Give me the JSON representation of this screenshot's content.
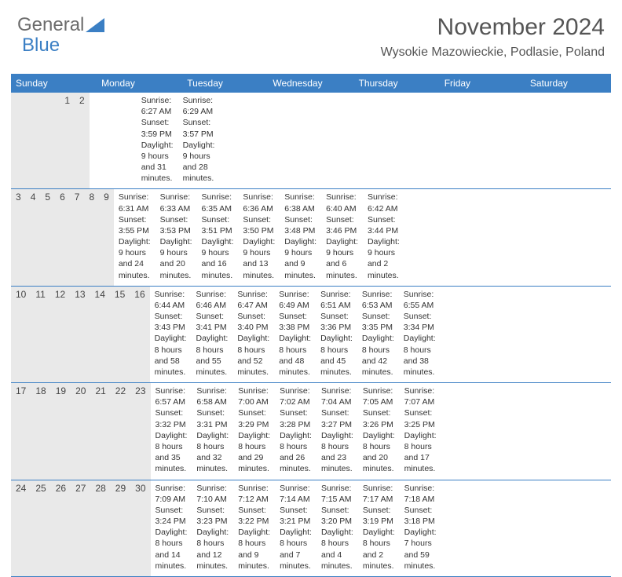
{
  "brand": {
    "part1": "General",
    "part2": "Blue"
  },
  "title": "November 2024",
  "location": "Wysokie Mazowieckie, Podlasie, Poland",
  "colors": {
    "header_bar": "#3b7fc4",
    "daynum_bg": "#e9e9e9",
    "text": "#333333",
    "title_text": "#555555"
  },
  "typography": {
    "title_fontsize": 30,
    "location_fontsize": 16,
    "dow_fontsize": 12,
    "daynum_fontsize": 12,
    "body_fontsize": 10.5
  },
  "dow": [
    "Sunday",
    "Monday",
    "Tuesday",
    "Wednesday",
    "Thursday",
    "Friday",
    "Saturday"
  ],
  "weeks": [
    {
      "nums": [
        "",
        "",
        "",
        "",
        "",
        "1",
        "2"
      ],
      "body": [
        "",
        "",
        "",
        "",
        "",
        "Sunrise: 6:27 AM\nSunset: 3:59 PM\nDaylight: 9 hours and 31 minutes.",
        "Sunrise: 6:29 AM\nSunset: 3:57 PM\nDaylight: 9 hours and 28 minutes."
      ]
    },
    {
      "nums": [
        "3",
        "4",
        "5",
        "6",
        "7",
        "8",
        "9"
      ],
      "body": [
        "Sunrise: 6:31 AM\nSunset: 3:55 PM\nDaylight: 9 hours and 24 minutes.",
        "Sunrise: 6:33 AM\nSunset: 3:53 PM\nDaylight: 9 hours and 20 minutes.",
        "Sunrise: 6:35 AM\nSunset: 3:51 PM\nDaylight: 9 hours and 16 minutes.",
        "Sunrise: 6:36 AM\nSunset: 3:50 PM\nDaylight: 9 hours and 13 minutes.",
        "Sunrise: 6:38 AM\nSunset: 3:48 PM\nDaylight: 9 hours and 9 minutes.",
        "Sunrise: 6:40 AM\nSunset: 3:46 PM\nDaylight: 9 hours and 6 minutes.",
        "Sunrise: 6:42 AM\nSunset: 3:44 PM\nDaylight: 9 hours and 2 minutes."
      ]
    },
    {
      "nums": [
        "10",
        "11",
        "12",
        "13",
        "14",
        "15",
        "16"
      ],
      "body": [
        "Sunrise: 6:44 AM\nSunset: 3:43 PM\nDaylight: 8 hours and 58 minutes.",
        "Sunrise: 6:46 AM\nSunset: 3:41 PM\nDaylight: 8 hours and 55 minutes.",
        "Sunrise: 6:47 AM\nSunset: 3:40 PM\nDaylight: 8 hours and 52 minutes.",
        "Sunrise: 6:49 AM\nSunset: 3:38 PM\nDaylight: 8 hours and 48 minutes.",
        "Sunrise: 6:51 AM\nSunset: 3:36 PM\nDaylight: 8 hours and 45 minutes.",
        "Sunrise: 6:53 AM\nSunset: 3:35 PM\nDaylight: 8 hours and 42 minutes.",
        "Sunrise: 6:55 AM\nSunset: 3:34 PM\nDaylight: 8 hours and 38 minutes."
      ]
    },
    {
      "nums": [
        "17",
        "18",
        "19",
        "20",
        "21",
        "22",
        "23"
      ],
      "body": [
        "Sunrise: 6:57 AM\nSunset: 3:32 PM\nDaylight: 8 hours and 35 minutes.",
        "Sunrise: 6:58 AM\nSunset: 3:31 PM\nDaylight: 8 hours and 32 minutes.",
        "Sunrise: 7:00 AM\nSunset: 3:29 PM\nDaylight: 8 hours and 29 minutes.",
        "Sunrise: 7:02 AM\nSunset: 3:28 PM\nDaylight: 8 hours and 26 minutes.",
        "Sunrise: 7:04 AM\nSunset: 3:27 PM\nDaylight: 8 hours and 23 minutes.",
        "Sunrise: 7:05 AM\nSunset: 3:26 PM\nDaylight: 8 hours and 20 minutes.",
        "Sunrise: 7:07 AM\nSunset: 3:25 PM\nDaylight: 8 hours and 17 minutes."
      ]
    },
    {
      "nums": [
        "24",
        "25",
        "26",
        "27",
        "28",
        "29",
        "30"
      ],
      "body": [
        "Sunrise: 7:09 AM\nSunset: 3:24 PM\nDaylight: 8 hours and 14 minutes.",
        "Sunrise: 7:10 AM\nSunset: 3:23 PM\nDaylight: 8 hours and 12 minutes.",
        "Sunrise: 7:12 AM\nSunset: 3:22 PM\nDaylight: 8 hours and 9 minutes.",
        "Sunrise: 7:14 AM\nSunset: 3:21 PM\nDaylight: 8 hours and 7 minutes.",
        "Sunrise: 7:15 AM\nSunset: 3:20 PM\nDaylight: 8 hours and 4 minutes.",
        "Sunrise: 7:17 AM\nSunset: 3:19 PM\nDaylight: 8 hours and 2 minutes.",
        "Sunrise: 7:18 AM\nSunset: 3:18 PM\nDaylight: 7 hours and 59 minutes."
      ]
    }
  ]
}
